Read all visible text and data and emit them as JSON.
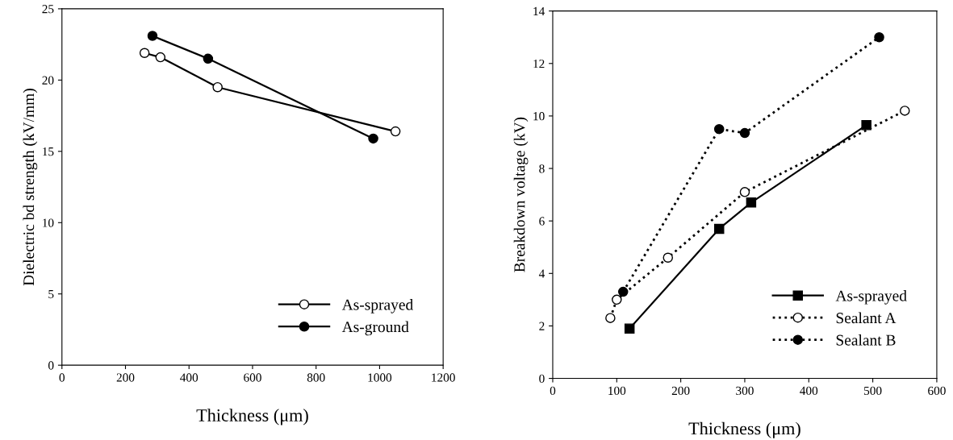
{
  "chart_data": [
    {
      "type": "line",
      "xlabel": "Thickness (μm)",
      "ylabel": "Dielectric bd strength (kV/mm)",
      "xlim": [
        0,
        1200
      ],
      "xticks": [
        0,
        200,
        400,
        600,
        800,
        1000,
        1200
      ],
      "ylim": [
        0,
        25
      ],
      "yticks": [
        0,
        5,
        10,
        15,
        20,
        25
      ],
      "grid": false,
      "legend": "bottom right",
      "line_style": "solid",
      "series": [
        {
          "name": "As-sprayed",
          "color": "#000000",
          "marker": "circle",
          "x": [
            260,
            310,
            490,
            1050
          ],
          "values": [
            21.9,
            21.6,
            19.5,
            16.4
          ]
        },
        {
          "name": "As-ground",
          "color": "#000000",
          "marker": "circle",
          "x": [
            285,
            460,
            980
          ],
          "values": [
            23.1,
            21.5,
            15.9
          ]
        }
      ]
    },
    {
      "type": "line",
      "xlabel": "Thickness (μm)",
      "ylabel": "Breakdown voltage (kV)",
      "xlim": [
        0,
        600
      ],
      "xticks": [
        0,
        100,
        200,
        300,
        400,
        500,
        600
      ],
      "ylim": [
        0,
        14
      ],
      "yticks": [
        0,
        2,
        4,
        6,
        8,
        10,
        12,
        14
      ],
      "grid": false,
      "legend": "bottom right",
      "series": [
        {
          "name": "As-sprayed",
          "color": "#000000",
          "marker": "square",
          "line_style": "solid",
          "x": [
            120,
            260,
            310,
            490
          ],
          "values": [
            1.9,
            5.7,
            6.7,
            9.65
          ]
        },
        {
          "name": "Sealant A",
          "color": "#000000",
          "marker": "circle",
          "line_style": "dotted",
          "x": [
            90,
            100,
            180,
            300,
            550
          ],
          "values": [
            2.3,
            3.0,
            4.6,
            7.1,
            10.2
          ]
        },
        {
          "name": "Sealant B",
          "color": "#000000",
          "marker": "circle",
          "line_style": "dotted",
          "x": [
            110,
            260,
            300,
            510
          ],
          "values": [
            3.3,
            9.5,
            9.35,
            13.0
          ]
        }
      ]
    }
  ]
}
